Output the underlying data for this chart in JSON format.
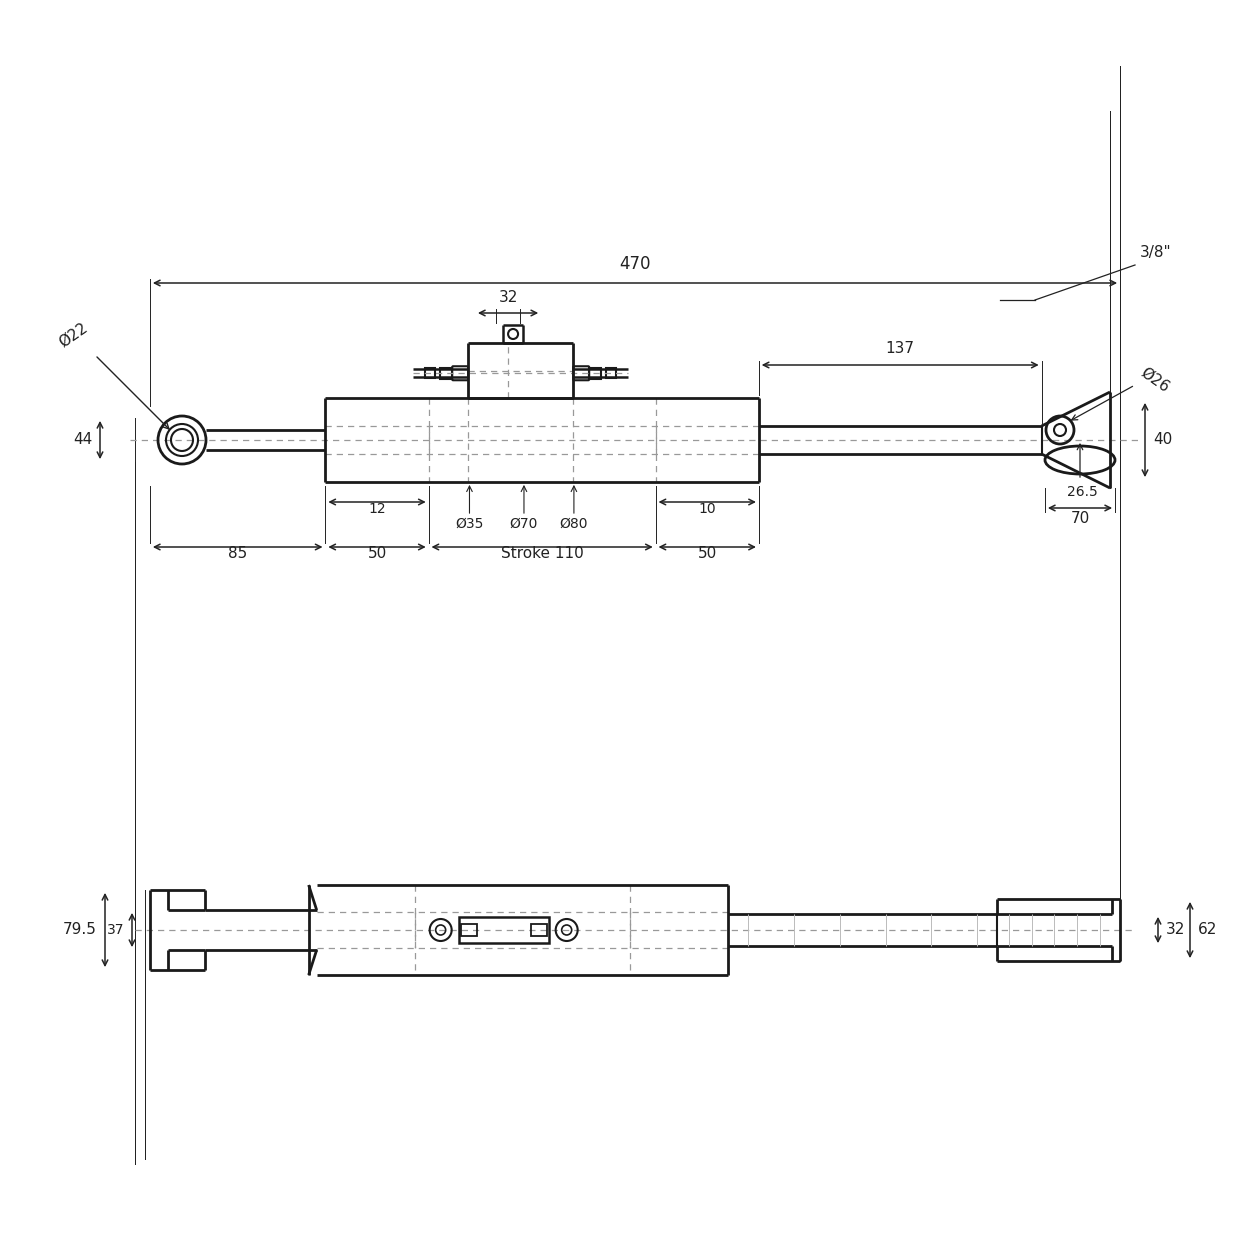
{
  "bg_color": "#ffffff",
  "line_color": "#1a1a1a",
  "dashed_color": "#999999",
  "dim_color": "#222222",
  "font_size_dim": 11,
  "dims": {
    "total_length": "470",
    "stroke": "Stroke 110",
    "bore_35": "Ø35",
    "bore_70": "Ø70",
    "bore_80": "Ø80",
    "fork_hole_22": "Ø22",
    "fork_hole_26": "Ø26",
    "dim_32": "32",
    "dim_12": "12",
    "dim_10": "10",
    "dim_85": "85",
    "dim_50a": "50",
    "dim_50b": "50",
    "dim_44": "44",
    "dim_137": "137",
    "dim_26_5": "26.5",
    "dim_70": "70",
    "dim_40": "40",
    "dim_thread": "3/8\"",
    "dim_79_5": "79.5",
    "dim_37": "37",
    "dim_32b": "32",
    "dim_62": "62"
  }
}
